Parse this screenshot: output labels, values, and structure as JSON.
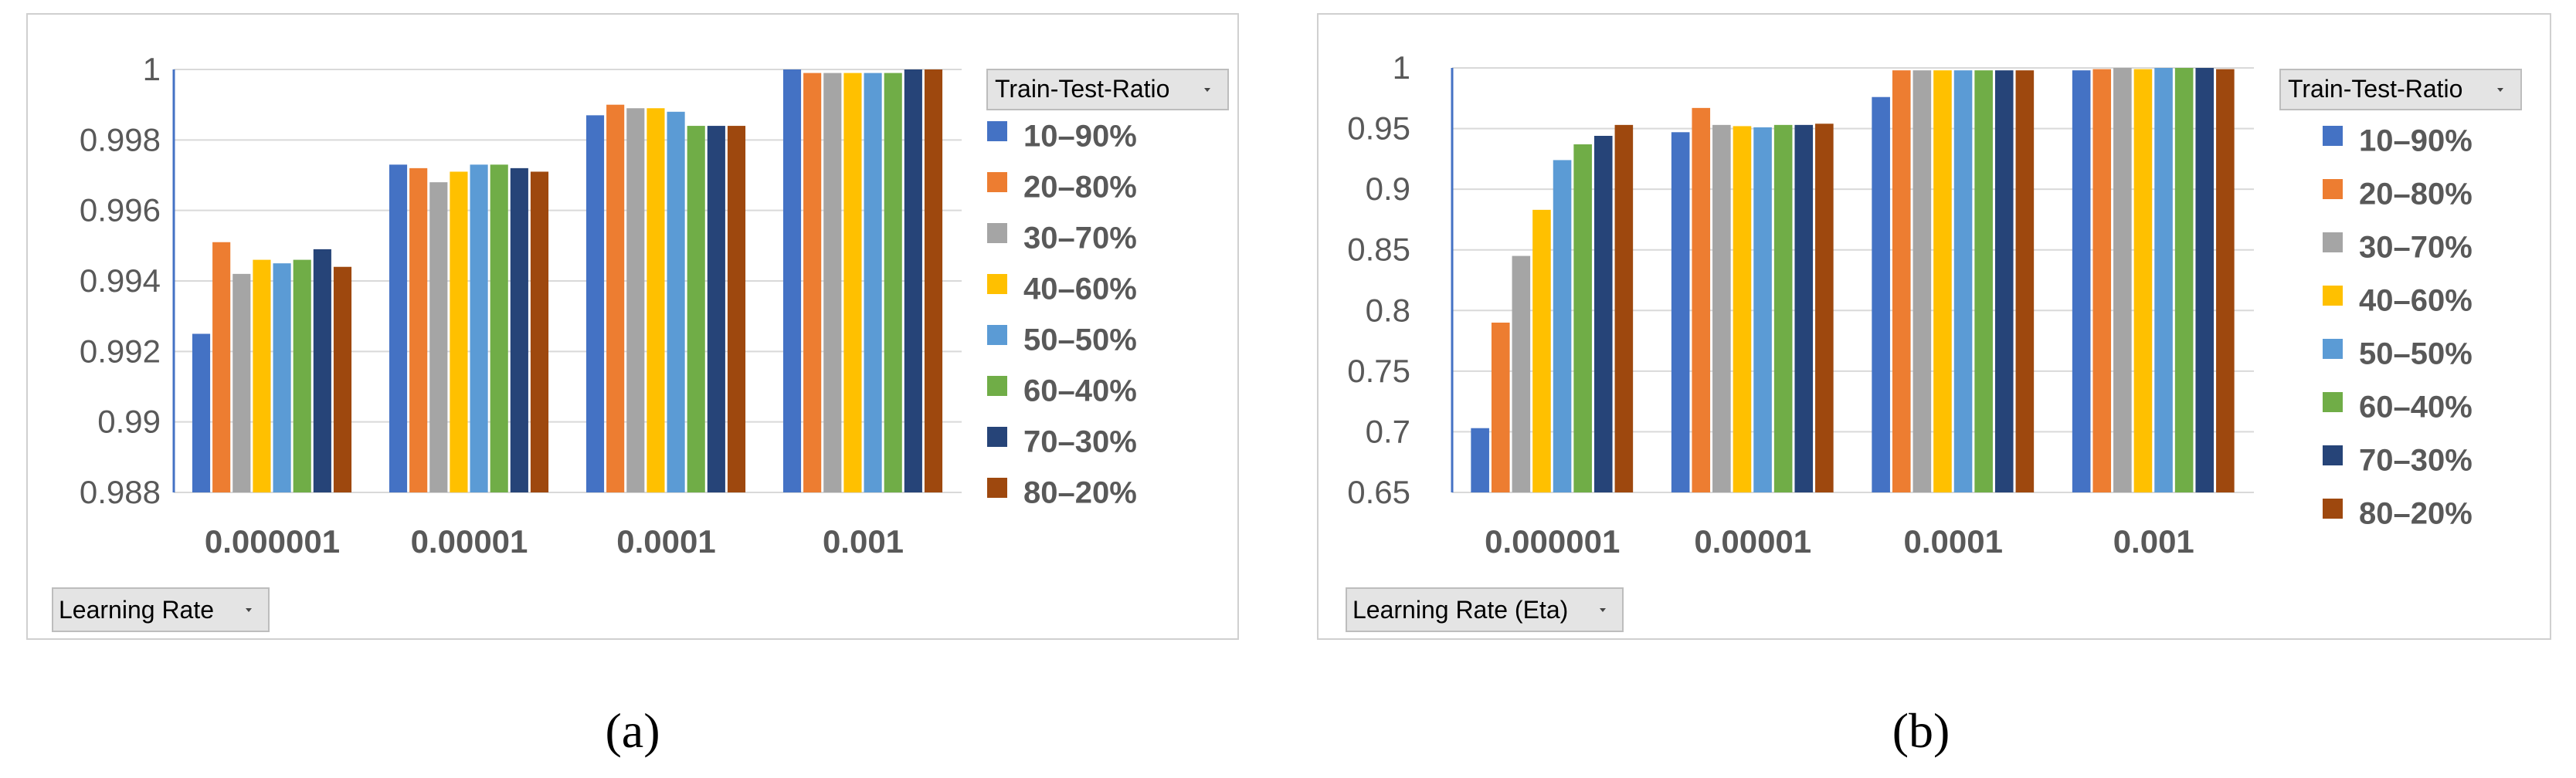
{
  "panels": [
    {
      "caption": "(a)",
      "legend_title": "Train-Test-Ratio",
      "axis_button": "Learning Rate"
    },
    {
      "caption": "(b)",
      "legend_title": "Train-Test-Ratio",
      "axis_button": "Learning Rate (Eta)"
    }
  ],
  "colors": [
    "#4472C4",
    "#ED7D31",
    "#A5A5A5",
    "#FFC000",
    "#5B9BD5",
    "#70AD47",
    "#264478",
    "#9E480E"
  ],
  "chart_data": [
    {
      "type": "bar",
      "title": "",
      "xlabel": "",
      "ylabel": "",
      "categories": [
        "0.000001",
        "0.00001",
        "0.0001",
        "0.001"
      ],
      "ylim": [
        0.988,
        1
      ],
      "yticks": [
        "0.988",
        "0.99",
        "0.992",
        "0.994",
        "0.996",
        "0.998",
        "1"
      ],
      "grid": true,
      "legend": "right",
      "series": [
        {
          "name": "10–90%",
          "values": [
            0.9925,
            0.9973,
            0.9987,
            1.0
          ]
        },
        {
          "name": "20–80%",
          "values": [
            0.9951,
            0.9972,
            0.999,
            0.9999
          ]
        },
        {
          "name": "30–70%",
          "values": [
            0.9942,
            0.9968,
            0.9989,
            0.9999
          ]
        },
        {
          "name": "40–60%",
          "values": [
            0.9946,
            0.9971,
            0.9989,
            0.9999
          ]
        },
        {
          "name": "50–50%",
          "values": [
            0.9945,
            0.9973,
            0.9988,
            0.9999
          ]
        },
        {
          "name": "60–40%",
          "values": [
            0.9946,
            0.9973,
            0.9984,
            0.9999
          ]
        },
        {
          "name": "70–30%",
          "values": [
            0.9949,
            0.9972,
            0.9984,
            1.0
          ]
        },
        {
          "name": "80–20%",
          "values": [
            0.9944,
            0.9971,
            0.9984,
            1.0
          ]
        }
      ]
    },
    {
      "type": "bar",
      "title": "",
      "xlabel": "",
      "ylabel": "",
      "categories": [
        "0.000001",
        "0.00001",
        "0.0001",
        "0.001"
      ],
      "ylim": [
        0.65,
        1
      ],
      "yticks": [
        "0.65",
        "0.7",
        "0.75",
        "0.8",
        "0.85",
        "0.9",
        "0.95",
        "1"
      ],
      "grid": true,
      "legend": "right",
      "series": [
        {
          "name": "10–90%",
          "values": [
            0.703,
            0.947,
            0.976,
            0.998
          ]
        },
        {
          "name": "20–80%",
          "values": [
            0.79,
            0.967,
            0.998,
            0.999
          ]
        },
        {
          "name": "30–70%",
          "values": [
            0.845,
            0.953,
            0.998,
            1.0
          ]
        },
        {
          "name": "40–60%",
          "values": [
            0.883,
            0.952,
            0.998,
            0.999
          ]
        },
        {
          "name": "50–50%",
          "values": [
            0.924,
            0.951,
            0.998,
            1.0
          ]
        },
        {
          "name": "60–40%",
          "values": [
            0.937,
            0.953,
            0.998,
            1.0
          ]
        },
        {
          "name": "70–30%",
          "values": [
            0.944,
            0.953,
            0.998,
            1.0
          ]
        },
        {
          "name": "80–20%",
          "values": [
            0.953,
            0.954,
            0.998,
            0.999
          ]
        }
      ]
    }
  ]
}
